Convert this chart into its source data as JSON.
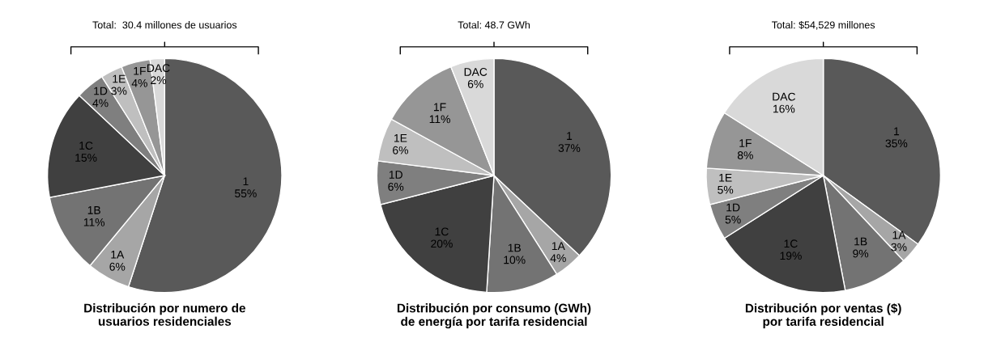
{
  "chart_data": [
    {
      "type": "pie",
      "title": "Distribución por numero de\nusuarios residenciales",
      "annotations": [
        "Total:  30.4 millones de usuarios"
      ],
      "categories": [
        "1",
        "1A",
        "1B",
        "1C",
        "1D",
        "1E",
        "1F",
        "DAC"
      ],
      "values": [
        55,
        6,
        11,
        15,
        4,
        3,
        4,
        2
      ],
      "value_labels": [
        "55%",
        "6%",
        "11%",
        "15%",
        "4%",
        "3%",
        "4%",
        "2%"
      ],
      "colors": [
        "#595959",
        "#a6a6a6",
        "#737373",
        "#404040",
        "#7f7f7f",
        "#bfbfbf",
        "#969696",
        "#d9d9d9"
      ],
      "legend": false
    },
    {
      "type": "pie",
      "title": "Distribución por consumo (GWh)\nde energía por tarifa residencial",
      "annotations": [
        "Total: 48.7 GWh"
      ],
      "categories": [
        "1",
        "1A",
        "1B",
        "1C",
        "1D",
        "1E",
        "1F",
        "DAC"
      ],
      "values": [
        37,
        4,
        10,
        20,
        6,
        6,
        11,
        6
      ],
      "value_labels": [
        "37%",
        "4%",
        "10%",
        "20%",
        "6%",
        "6%",
        "11%",
        "6%"
      ],
      "colors": [
        "#595959",
        "#a6a6a6",
        "#737373",
        "#404040",
        "#7f7f7f",
        "#bfbfbf",
        "#969696",
        "#d9d9d9"
      ],
      "legend": false
    },
    {
      "type": "pie",
      "title": "Distribución por ventas ($)\npor tarifa residencial",
      "annotations": [
        "Total: $54,529 millones"
      ],
      "categories": [
        "1",
        "1A",
        "1B",
        "1C",
        "1D",
        "1E",
        "1F",
        "DAC"
      ],
      "values": [
        35,
        3,
        9,
        19,
        5,
        5,
        8,
        16
      ],
      "value_labels": [
        "35%",
        "3%",
        "9%",
        "19%",
        "5%",
        "5%",
        "8%",
        "16%"
      ],
      "colors": [
        "#595959",
        "#a6a6a6",
        "#737373",
        "#404040",
        "#7f7f7f",
        "#bfbfbf",
        "#969696",
        "#d9d9d9"
      ],
      "legend": false
    }
  ]
}
